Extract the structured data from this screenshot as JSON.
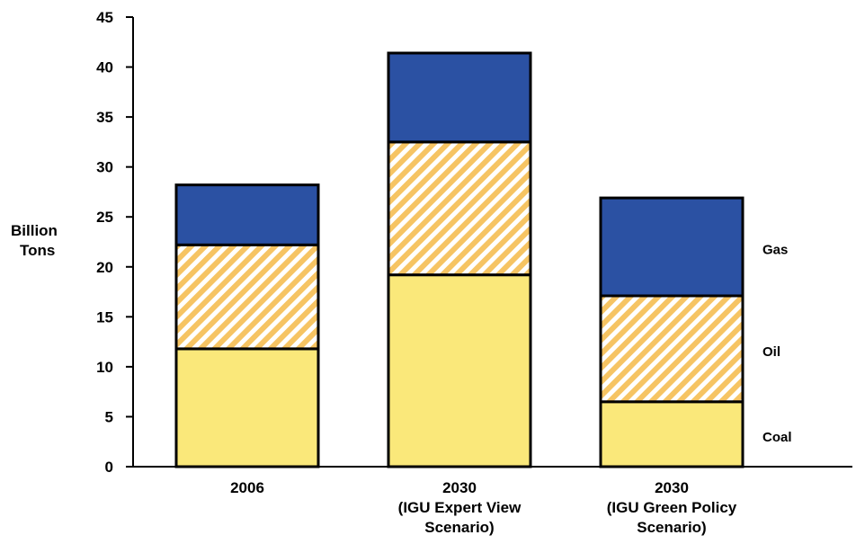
{
  "chart_data": {
    "type": "bar",
    "stacked": true,
    "title": "",
    "xlabel": "",
    "ylabel": [
      "Billion",
      "Tons"
    ],
    "ylim": [
      0,
      45
    ],
    "yticks": [
      0,
      5,
      10,
      15,
      20,
      25,
      30,
      35,
      40,
      45
    ],
    "grid": false,
    "legend_placement": "right of last bar",
    "categories": [
      [
        "2006"
      ],
      [
        "2030",
        "(IGU Expert View",
        "Scenario)"
      ],
      [
        "2030",
        "(IGU Green Policy",
        "Scenario)"
      ]
    ],
    "series": [
      {
        "name": "Coal",
        "values": [
          11.8,
          19.2,
          6.5
        ],
        "color": "#fae87a",
        "pattern": "solid"
      },
      {
        "name": "Oil",
        "values": [
          10.4,
          13.3,
          10.6
        ],
        "color": "#f6c463",
        "pattern": "diagonal-hatch"
      },
      {
        "name": "Gas",
        "values": [
          6.0,
          8.9,
          9.8
        ],
        "color": "#2b51a3",
        "pattern": "solid"
      }
    ]
  }
}
